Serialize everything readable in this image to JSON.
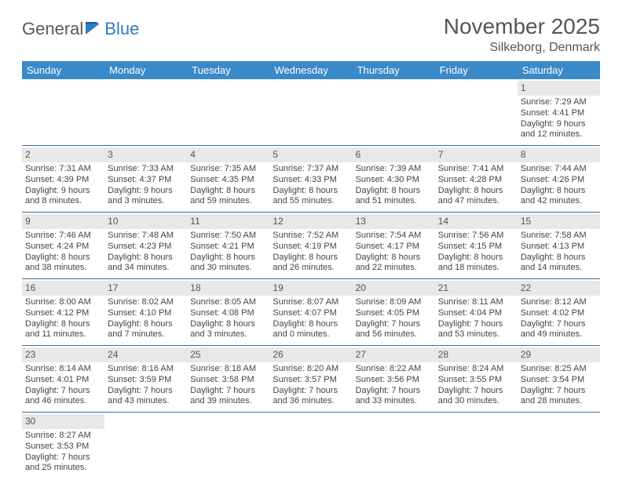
{
  "logo": {
    "word1": "General",
    "word2": "Blue"
  },
  "title": {
    "month": "November 2025",
    "location": "Silkeborg, Denmark"
  },
  "colors": {
    "header_bg": "#3a89c9",
    "header_text": "#ffffff",
    "daynum_bg": "#e8e8e8",
    "row_border": "#3a6fa5",
    "logo_gray": "#5a5a5a",
    "logo_blue": "#2f7bc4"
  },
  "weekdays": [
    "Sunday",
    "Monday",
    "Tuesday",
    "Wednesday",
    "Thursday",
    "Friday",
    "Saturday"
  ],
  "cells": [
    {
      "day": "",
      "lines": [
        "",
        "",
        "",
        ""
      ]
    },
    {
      "day": "",
      "lines": [
        "",
        "",
        "",
        ""
      ]
    },
    {
      "day": "",
      "lines": [
        "",
        "",
        "",
        ""
      ]
    },
    {
      "day": "",
      "lines": [
        "",
        "",
        "",
        ""
      ]
    },
    {
      "day": "",
      "lines": [
        "",
        "",
        "",
        ""
      ]
    },
    {
      "day": "",
      "lines": [
        "",
        "",
        "",
        ""
      ]
    },
    {
      "day": "1",
      "lines": [
        "Sunrise: 7:29 AM",
        "Sunset: 4:41 PM",
        "Daylight: 9 hours",
        "and 12 minutes."
      ]
    },
    {
      "day": "2",
      "lines": [
        "Sunrise: 7:31 AM",
        "Sunset: 4:39 PM",
        "Daylight: 9 hours",
        "and 8 minutes."
      ]
    },
    {
      "day": "3",
      "lines": [
        "Sunrise: 7:33 AM",
        "Sunset: 4:37 PM",
        "Daylight: 9 hours",
        "and 3 minutes."
      ]
    },
    {
      "day": "4",
      "lines": [
        "Sunrise: 7:35 AM",
        "Sunset: 4:35 PM",
        "Daylight: 8 hours",
        "and 59 minutes."
      ]
    },
    {
      "day": "5",
      "lines": [
        "Sunrise: 7:37 AM",
        "Sunset: 4:33 PM",
        "Daylight: 8 hours",
        "and 55 minutes."
      ]
    },
    {
      "day": "6",
      "lines": [
        "Sunrise: 7:39 AM",
        "Sunset: 4:30 PM",
        "Daylight: 8 hours",
        "and 51 minutes."
      ]
    },
    {
      "day": "7",
      "lines": [
        "Sunrise: 7:41 AM",
        "Sunset: 4:28 PM",
        "Daylight: 8 hours",
        "and 47 minutes."
      ]
    },
    {
      "day": "8",
      "lines": [
        "Sunrise: 7:44 AM",
        "Sunset: 4:26 PM",
        "Daylight: 8 hours",
        "and 42 minutes."
      ]
    },
    {
      "day": "9",
      "lines": [
        "Sunrise: 7:46 AM",
        "Sunset: 4:24 PM",
        "Daylight: 8 hours",
        "and 38 minutes."
      ]
    },
    {
      "day": "10",
      "lines": [
        "Sunrise: 7:48 AM",
        "Sunset: 4:23 PM",
        "Daylight: 8 hours",
        "and 34 minutes."
      ]
    },
    {
      "day": "11",
      "lines": [
        "Sunrise: 7:50 AM",
        "Sunset: 4:21 PM",
        "Daylight: 8 hours",
        "and 30 minutes."
      ]
    },
    {
      "day": "12",
      "lines": [
        "Sunrise: 7:52 AM",
        "Sunset: 4:19 PM",
        "Daylight: 8 hours",
        "and 26 minutes."
      ]
    },
    {
      "day": "13",
      "lines": [
        "Sunrise: 7:54 AM",
        "Sunset: 4:17 PM",
        "Daylight: 8 hours",
        "and 22 minutes."
      ]
    },
    {
      "day": "14",
      "lines": [
        "Sunrise: 7:56 AM",
        "Sunset: 4:15 PM",
        "Daylight: 8 hours",
        "and 18 minutes."
      ]
    },
    {
      "day": "15",
      "lines": [
        "Sunrise: 7:58 AM",
        "Sunset: 4:13 PM",
        "Daylight: 8 hours",
        "and 14 minutes."
      ]
    },
    {
      "day": "16",
      "lines": [
        "Sunrise: 8:00 AM",
        "Sunset: 4:12 PM",
        "Daylight: 8 hours",
        "and 11 minutes."
      ]
    },
    {
      "day": "17",
      "lines": [
        "Sunrise: 8:02 AM",
        "Sunset: 4:10 PM",
        "Daylight: 8 hours",
        "and 7 minutes."
      ]
    },
    {
      "day": "18",
      "lines": [
        "Sunrise: 8:05 AM",
        "Sunset: 4:08 PM",
        "Daylight: 8 hours",
        "and 3 minutes."
      ]
    },
    {
      "day": "19",
      "lines": [
        "Sunrise: 8:07 AM",
        "Sunset: 4:07 PM",
        "Daylight: 8 hours",
        "and 0 minutes."
      ]
    },
    {
      "day": "20",
      "lines": [
        "Sunrise: 8:09 AM",
        "Sunset: 4:05 PM",
        "Daylight: 7 hours",
        "and 56 minutes."
      ]
    },
    {
      "day": "21",
      "lines": [
        "Sunrise: 8:11 AM",
        "Sunset: 4:04 PM",
        "Daylight: 7 hours",
        "and 53 minutes."
      ]
    },
    {
      "day": "22",
      "lines": [
        "Sunrise: 8:12 AM",
        "Sunset: 4:02 PM",
        "Daylight: 7 hours",
        "and 49 minutes."
      ]
    },
    {
      "day": "23",
      "lines": [
        "Sunrise: 8:14 AM",
        "Sunset: 4:01 PM",
        "Daylight: 7 hours",
        "and 46 minutes."
      ]
    },
    {
      "day": "24",
      "lines": [
        "Sunrise: 8:16 AM",
        "Sunset: 3:59 PM",
        "Daylight: 7 hours",
        "and 43 minutes."
      ]
    },
    {
      "day": "25",
      "lines": [
        "Sunrise: 8:18 AM",
        "Sunset: 3:58 PM",
        "Daylight: 7 hours",
        "and 39 minutes."
      ]
    },
    {
      "day": "26",
      "lines": [
        "Sunrise: 8:20 AM",
        "Sunset: 3:57 PM",
        "Daylight: 7 hours",
        "and 36 minutes."
      ]
    },
    {
      "day": "27",
      "lines": [
        "Sunrise: 8:22 AM",
        "Sunset: 3:56 PM",
        "Daylight: 7 hours",
        "and 33 minutes."
      ]
    },
    {
      "day": "28",
      "lines": [
        "Sunrise: 8:24 AM",
        "Sunset: 3:55 PM",
        "Daylight: 7 hours",
        "and 30 minutes."
      ]
    },
    {
      "day": "29",
      "lines": [
        "Sunrise: 8:25 AM",
        "Sunset: 3:54 PM",
        "Daylight: 7 hours",
        "and 28 minutes."
      ]
    },
    {
      "day": "30",
      "lines": [
        "Sunrise: 8:27 AM",
        "Sunset: 3:53 PM",
        "Daylight: 7 hours",
        "and 25 minutes."
      ]
    },
    {
      "day": "",
      "lines": [
        "",
        "",
        "",
        ""
      ]
    },
    {
      "day": "",
      "lines": [
        "",
        "",
        "",
        ""
      ]
    },
    {
      "day": "",
      "lines": [
        "",
        "",
        "",
        ""
      ]
    },
    {
      "day": "",
      "lines": [
        "",
        "",
        "",
        ""
      ]
    },
    {
      "day": "",
      "lines": [
        "",
        "",
        "",
        ""
      ]
    },
    {
      "day": "",
      "lines": [
        "",
        "",
        "",
        ""
      ]
    }
  ]
}
